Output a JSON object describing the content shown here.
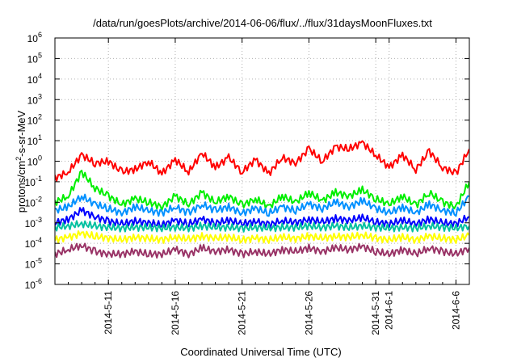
{
  "chart_data": {
    "type": "line",
    "title": "/data/run/goesPlots/archive/2014-06-06/flux/../flux/31daysMoonFluxes.txt",
    "xlabel": "Coordinated Universal Time (UTC)",
    "ylabel": {
      "base": "protons/cm",
      "sup": "2",
      "rest": "-s-sr-MeV"
    },
    "yscale": "log",
    "ylim": [
      1e-06,
      1000000.0
    ],
    "yticks": [
      {
        "exp": "-6",
        "value": 1e-06
      },
      {
        "exp": "-5",
        "value": 1e-05
      },
      {
        "exp": "-4",
        "value": 0.0001
      },
      {
        "exp": "-3",
        "value": 0.001
      },
      {
        "exp": "-2",
        "value": 0.01
      },
      {
        "exp": "-1",
        "value": 0.1
      },
      {
        "exp": "0",
        "value": 1
      },
      {
        "exp": "1",
        "value": 10.0
      },
      {
        "exp": "2",
        "value": 100.0
      },
      {
        "exp": "3",
        "value": 1000.0
      },
      {
        "exp": "4",
        "value": 10000.0
      },
      {
        "exp": "5",
        "value": 100000.0
      },
      {
        "exp": "6",
        "value": 1000000.0
      }
    ],
    "ytick_base": "10",
    "xlim": [
      "2014-05-07",
      "2014-06-07"
    ],
    "xticks": [
      {
        "label": "2014-5-11",
        "date": "2014-05-11"
      },
      {
        "label": "2014-5-16",
        "date": "2014-05-16"
      },
      {
        "label": "2014-5-21",
        "date": "2014-05-21"
      },
      {
        "label": "2014-5-26",
        "date": "2014-05-26"
      },
      {
        "label": "2014-5-31",
        "date": "2014-05-31"
      },
      {
        "label": "2014-6-1",
        "date": "2014-06-01"
      },
      {
        "label": "2014-6-6",
        "date": "2014-06-06"
      }
    ],
    "grid": true,
    "series": [
      {
        "color": "#ff0000",
        "x": [
          "2014-05-07",
          "2014-05-08",
          "2014-05-09",
          "2014-05-10",
          "2014-05-11",
          "2014-05-12",
          "2014-05-13",
          "2014-05-14",
          "2014-05-15",
          "2014-05-16",
          "2014-05-17",
          "2014-05-18",
          "2014-05-19",
          "2014-05-20",
          "2014-05-21",
          "2014-05-22",
          "2014-05-23",
          "2014-05-24",
          "2014-05-25",
          "2014-05-26",
          "2014-05-27",
          "2014-05-28",
          "2014-05-29",
          "2014-05-30",
          "2014-05-31",
          "2014-06-01",
          "2014-06-02",
          "2014-06-03",
          "2014-06-04",
          "2014-06-05",
          "2014-06-06",
          "2014-06-07"
        ],
        "y": [
          0.15,
          0.3,
          2.0,
          0.8,
          1.0,
          0.3,
          0.4,
          1.0,
          0.25,
          1.2,
          0.3,
          2.5,
          0.5,
          1.5,
          0.3,
          1.2,
          0.25,
          1.5,
          0.8,
          4.0,
          1.0,
          5.0,
          4.0,
          8.0,
          2.0,
          0.5,
          2.0,
          0.4,
          3.0,
          0.5,
          0.25,
          4.0
        ]
      },
      {
        "color": "#00ee00",
        "x": [
          "2014-05-07",
          "2014-05-08",
          "2014-05-09",
          "2014-05-10",
          "2014-05-11",
          "2014-05-12",
          "2014-05-13",
          "2014-05-14",
          "2014-05-15",
          "2014-05-16",
          "2014-05-17",
          "2014-05-18",
          "2014-05-19",
          "2014-05-20",
          "2014-05-21",
          "2014-05-22",
          "2014-05-23",
          "2014-05-24",
          "2014-05-25",
          "2014-05-26",
          "2014-05-27",
          "2014-05-28",
          "2014-05-29",
          "2014-05-30",
          "2014-05-31",
          "2014-06-01",
          "2014-06-02",
          "2014-06-03",
          "2014-06-04",
          "2014-06-05",
          "2014-06-06",
          "2014-06-07"
        ],
        "y": [
          0.01,
          0.02,
          0.3,
          0.05,
          0.02,
          0.008,
          0.015,
          0.01,
          0.006,
          0.02,
          0.008,
          0.03,
          0.01,
          0.02,
          0.007,
          0.015,
          0.006,
          0.02,
          0.01,
          0.03,
          0.012,
          0.03,
          0.02,
          0.04,
          0.015,
          0.008,
          0.02,
          0.007,
          0.03,
          0.01,
          0.006,
          0.1
        ]
      },
      {
        "color": "#0090ff",
        "x": [
          "2014-05-07",
          "2014-05-08",
          "2014-05-09",
          "2014-05-10",
          "2014-05-11",
          "2014-05-12",
          "2014-05-13",
          "2014-05-14",
          "2014-05-15",
          "2014-05-16",
          "2014-05-17",
          "2014-05-18",
          "2014-05-19",
          "2014-05-20",
          "2014-05-21",
          "2014-05-22",
          "2014-05-23",
          "2014-05-24",
          "2014-05-25",
          "2014-05-26",
          "2014-05-27",
          "2014-05-28",
          "2014-05-29",
          "2014-05-30",
          "2014-05-31",
          "2014-06-01",
          "2014-06-02",
          "2014-06-03",
          "2014-06-04",
          "2014-06-05",
          "2014-06-06",
          "2014-06-07"
        ],
        "y": [
          0.004,
          0.006,
          0.02,
          0.008,
          0.005,
          0.003,
          0.006,
          0.004,
          0.003,
          0.006,
          0.003,
          0.008,
          0.004,
          0.006,
          0.003,
          0.005,
          0.003,
          0.006,
          0.004,
          0.008,
          0.005,
          0.01,
          0.006,
          0.012,
          0.005,
          0.003,
          0.006,
          0.003,
          0.008,
          0.004,
          0.003,
          0.02
        ]
      },
      {
        "color": "#0000ff",
        "x": [
          "2014-05-07",
          "2014-05-08",
          "2014-05-09",
          "2014-05-10",
          "2014-05-11",
          "2014-05-12",
          "2014-05-13",
          "2014-05-14",
          "2014-05-15",
          "2014-05-16",
          "2014-05-17",
          "2014-05-18",
          "2014-05-19",
          "2014-05-20",
          "2014-05-21",
          "2014-05-22",
          "2014-05-23",
          "2014-05-24",
          "2014-05-25",
          "2014-05-26",
          "2014-05-27",
          "2014-05-28",
          "2014-05-29",
          "2014-05-30",
          "2014-05-31",
          "2014-06-01",
          "2014-06-02",
          "2014-06-03",
          "2014-06-04",
          "2014-06-05",
          "2014-06-06",
          "2014-06-07"
        ],
        "y": [
          0.001,
          0.0015,
          0.004,
          0.002,
          0.0012,
          0.0009,
          0.0012,
          0.001,
          0.0008,
          0.0013,
          0.0009,
          0.0015,
          0.001,
          0.0013,
          0.0009,
          0.0012,
          0.0008,
          0.0013,
          0.001,
          0.0015,
          0.0011,
          0.0016,
          0.0013,
          0.0018,
          0.0011,
          0.0009,
          0.0013,
          0.0009,
          0.0015,
          0.001,
          0.0009,
          0.002
        ]
      },
      {
        "color": "#00c0a0",
        "x": [
          "2014-05-07",
          "2014-05-08",
          "2014-05-09",
          "2014-05-10",
          "2014-05-11",
          "2014-05-12",
          "2014-05-13",
          "2014-05-14",
          "2014-05-15",
          "2014-05-16",
          "2014-05-17",
          "2014-05-18",
          "2014-05-19",
          "2014-05-20",
          "2014-05-21",
          "2014-05-22",
          "2014-05-23",
          "2014-05-24",
          "2014-05-25",
          "2014-05-26",
          "2014-05-27",
          "2014-05-28",
          "2014-05-29",
          "2014-05-30",
          "2014-05-31",
          "2014-06-01",
          "2014-06-02",
          "2014-06-03",
          "2014-06-04",
          "2014-06-05",
          "2014-06-06",
          "2014-06-07"
        ],
        "y": [
          0.0006,
          0.0007,
          0.0009,
          0.0007,
          0.0006,
          0.00055,
          0.0006,
          0.0006,
          0.00055,
          0.0006,
          0.00055,
          0.0007,
          0.0006,
          0.0006,
          0.00055,
          0.0006,
          0.00055,
          0.0006,
          0.0006,
          0.0007,
          0.0006,
          0.0007,
          0.0006,
          0.0007,
          0.0006,
          0.00055,
          0.0006,
          0.00055,
          0.0007,
          0.0006,
          0.00055,
          0.0007
        ]
      },
      {
        "color": "#ffff00",
        "x": [
          "2014-05-07",
          "2014-05-08",
          "2014-05-09",
          "2014-05-10",
          "2014-05-11",
          "2014-05-12",
          "2014-05-13",
          "2014-05-14",
          "2014-05-15",
          "2014-05-16",
          "2014-05-17",
          "2014-05-18",
          "2014-05-19",
          "2014-05-20",
          "2014-05-21",
          "2014-05-22",
          "2014-05-23",
          "2014-05-24",
          "2014-05-25",
          "2014-05-26",
          "2014-05-27",
          "2014-05-28",
          "2014-05-29",
          "2014-05-30",
          "2014-05-31",
          "2014-06-01",
          "2014-06-02",
          "2014-06-03",
          "2014-06-04",
          "2014-06-05",
          "2014-06-06",
          "2014-06-07"
        ],
        "y": [
          0.00015,
          0.0002,
          0.0003,
          0.00022,
          0.00018,
          0.00015,
          0.0002,
          0.00017,
          0.00015,
          0.0002,
          0.00016,
          0.00022,
          0.00018,
          0.0002,
          0.00015,
          0.00018,
          0.00015,
          0.0002,
          0.00017,
          0.00022,
          0.00018,
          0.00022,
          0.0002,
          0.00025,
          0.00018,
          0.00015,
          0.0002,
          0.00015,
          0.00022,
          0.00018,
          0.00015,
          0.00025
        ]
      },
      {
        "color": "#993366",
        "x": [
          "2014-05-07",
          "2014-05-08",
          "2014-05-09",
          "2014-05-10",
          "2014-05-11",
          "2014-05-12",
          "2014-05-13",
          "2014-05-14",
          "2014-05-15",
          "2014-05-16",
          "2014-05-17",
          "2014-05-18",
          "2014-05-19",
          "2014-05-20",
          "2014-05-21",
          "2014-05-22",
          "2014-05-23",
          "2014-05-24",
          "2014-05-25",
          "2014-05-26",
          "2014-05-27",
          "2014-05-28",
          "2014-05-29",
          "2014-05-30",
          "2014-05-31",
          "2014-06-01",
          "2014-06-02",
          "2014-06-03",
          "2014-06-04",
          "2014-06-05",
          "2014-06-06",
          "2014-06-07"
        ],
        "y": [
          3e-05,
          5e-05,
          8e-05,
          4e-05,
          3e-05,
          3e-05,
          4e-05,
          3e-05,
          3e-05,
          5e-05,
          3e-05,
          6e-05,
          4e-05,
          5e-05,
          3e-05,
          4e-05,
          3e-05,
          5e-05,
          4e-05,
          6e-05,
          4e-05,
          6e-05,
          5e-05,
          7e-05,
          4e-05,
          3e-05,
          5e-05,
          3e-05,
          6e-05,
          4e-05,
          3e-05,
          6e-05
        ]
      }
    ]
  }
}
